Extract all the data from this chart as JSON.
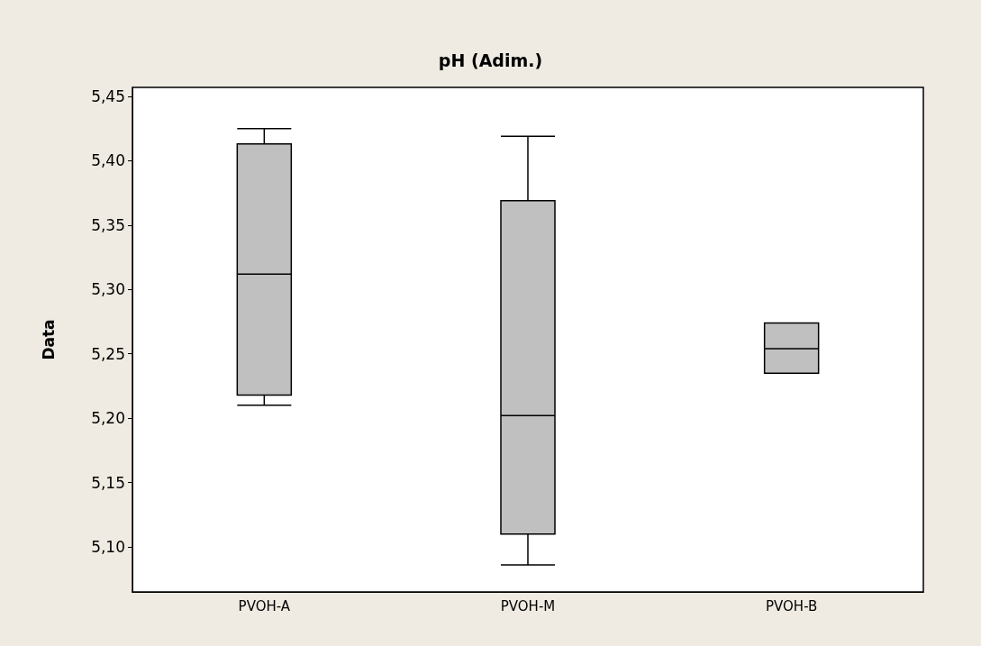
{
  "chart_data": {
    "type": "box",
    "title": "pH (Adim.)",
    "ylabel": "Data",
    "categories": [
      "PVOH-A",
      "PVOH-M",
      "PVOH-B"
    ],
    "boxes": [
      {
        "low": 5.21,
        "q1": 5.218,
        "median": 5.312,
        "q3": 5.413,
        "high": 5.425
      },
      {
        "low": 5.086,
        "q1": 5.11,
        "median": 5.202,
        "q3": 5.369,
        "high": 5.419
      },
      {
        "low": 5.235,
        "q1": 5.235,
        "median": 5.254,
        "q3": 5.274,
        "high": 5.274
      }
    ],
    "color": "#c0c0c0",
    "ylim": [
      5.065,
      5.457
    ],
    "yticks": [
      {
        "value": 5.1,
        "label": "5,10"
      },
      {
        "value": 5.15,
        "label": "5,15"
      },
      {
        "value": 5.2,
        "label": "5,20"
      },
      {
        "value": 5.25,
        "label": "5,25"
      },
      {
        "value": 5.3,
        "label": "5,30"
      },
      {
        "value": 5.35,
        "label": "5,35"
      },
      {
        "value": 5.4,
        "label": "5,40"
      },
      {
        "value": 5.45,
        "label": "5,45"
      }
    ],
    "grid": false
  }
}
